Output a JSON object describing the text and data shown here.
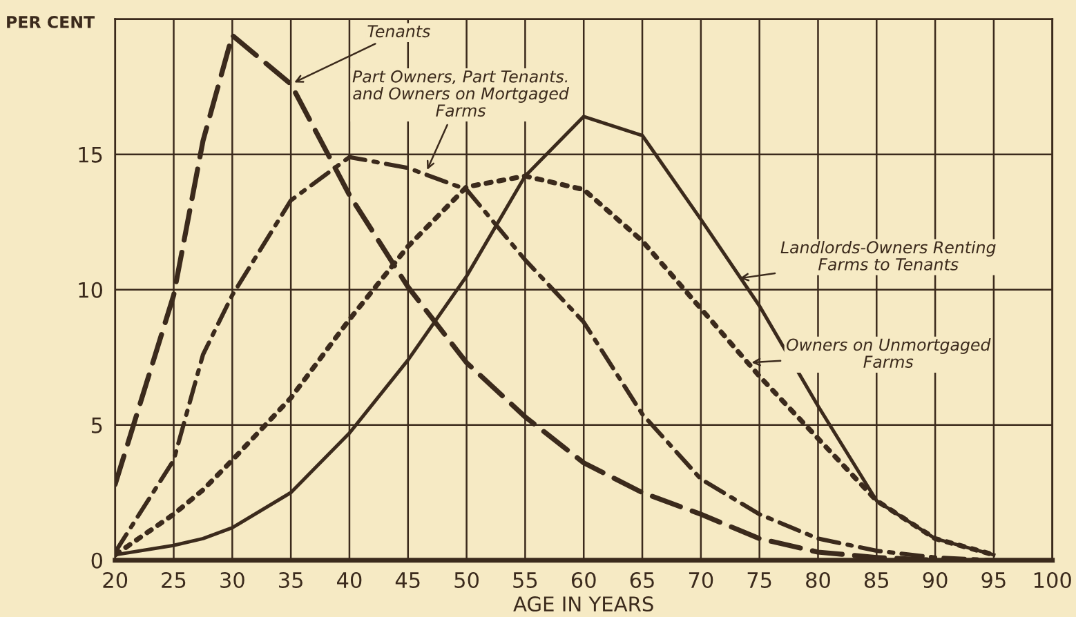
{
  "chart_data": {
    "type": "line",
    "xlabel": "AGE IN YEARS",
    "ylabel": "PER CENT",
    "x": [
      20,
      25,
      27.5,
      30,
      35,
      40,
      45,
      50,
      55,
      60,
      65,
      70,
      75,
      80,
      85,
      90,
      95
    ],
    "series": [
      {
        "color": "#3b2a1c",
        "line_style": "dashed",
        "values": [
          2.8,
          9.8,
          15.5,
          19.4,
          17.6,
          13.5,
          10.1,
          7.3,
          5.3,
          3.6,
          2.5,
          1.7,
          0.8,
          0.3,
          0.1,
          0,
          null
        ]
      },
      {
        "color": "#3b2a1c",
        "line_style": "dashdot",
        "values": [
          0.3,
          3.7,
          7.6,
          9.8,
          13.3,
          14.9,
          14.5,
          13.7,
          11.1,
          8.8,
          5.4,
          3.0,
          1.7,
          0.8,
          0.35,
          0.1,
          0
        ]
      },
      {
        "color": "#3b2a1c",
        "line_style": "dotted",
        "values": [
          0.2,
          1.7,
          2.6,
          3.7,
          6.0,
          8.9,
          11.6,
          13.8,
          14.2,
          13.7,
          11.8,
          9.3,
          6.8,
          4.5,
          2.2,
          0.8,
          0.2
        ]
      },
      {
        "color": "#3b2a1c",
        "line_style": "solid",
        "values": [
          0.2,
          0.55,
          0.8,
          1.2,
          2.5,
          4.7,
          7.4,
          10.5,
          14.2,
          16.4,
          15.7,
          12.6,
          9.4,
          5.7,
          2.2,
          0.8,
          0.2
        ]
      }
    ],
    "annotations": [
      {
        "text": "Tenants",
        "x": 35,
        "y": 17.6
      },
      {
        "text": "Part Owners, Part Tenants.\nand Owners on Mortgaged\nFarms",
        "x": 46.5,
        "y": 14.3
      },
      {
        "text": "Landlords-Owners Renting\nFarms to Tenants",
        "x": 73,
        "y": 10.4
      },
      {
        "text": "Owners on Unmortgaged\nFarms",
        "x": 74,
        "y": 7.3
      }
    ],
    "xlim": [
      20,
      100
    ],
    "ylim": [
      0,
      20
    ],
    "xticks": [
      20,
      25,
      30,
      35,
      40,
      45,
      50,
      55,
      60,
      65,
      70,
      75,
      80,
      85,
      90,
      95,
      100
    ],
    "yticks": [
      0,
      5,
      10,
      15,
      {
        "value": 20,
        "label": null
      }
    ],
    "grid": true,
    "legend": false
  }
}
